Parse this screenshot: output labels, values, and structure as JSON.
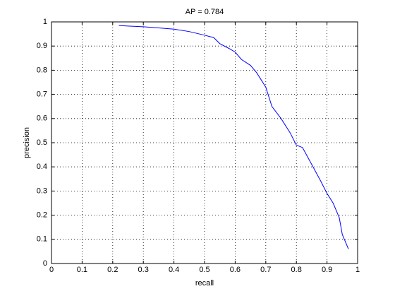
{
  "chart_data": {
    "type": "line",
    "title": "AP = 0.784",
    "x_label": "recall",
    "y_label": "precision",
    "x": [
      0.22,
      0.25,
      0.3,
      0.35,
      0.4,
      0.45,
      0.5,
      0.53,
      0.55,
      0.58,
      0.6,
      0.62,
      0.65,
      0.67,
      0.7,
      0.72,
      0.75,
      0.78,
      0.8,
      0.82,
      0.85,
      0.88,
      0.9,
      0.92,
      0.94,
      0.95,
      0.97
    ],
    "series": [
      {
        "color": "#0000ff",
        "values": [
          0.985,
          0.983,
          0.98,
          0.975,
          0.97,
          0.96,
          0.945,
          0.935,
          0.91,
          0.89,
          0.875,
          0.845,
          0.82,
          0.79,
          0.73,
          0.65,
          0.6,
          0.54,
          0.49,
          0.48,
          0.41,
          0.34,
          0.29,
          0.25,
          0.19,
          0.12,
          0.06
        ]
      }
    ],
    "xlim": [
      0,
      1
    ],
    "ylim": [
      0,
      1
    ],
    "xticks": [
      0,
      0.1,
      0.2,
      0.3,
      0.4,
      0.5,
      0.6,
      0.7,
      0.8,
      0.9,
      1
    ],
    "yticks": [
      0,
      0.1,
      0.2,
      0.3,
      0.4,
      0.5,
      0.6,
      0.7,
      0.8,
      0.9,
      1
    ],
    "grid": true
  }
}
